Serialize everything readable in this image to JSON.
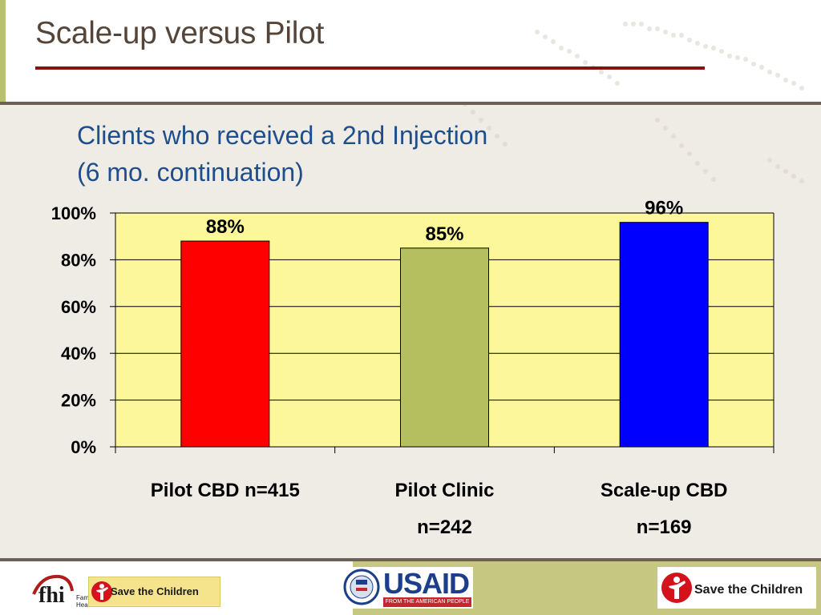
{
  "slide": {
    "title": "Scale-up versus Pilot",
    "subtitle_line1": "Clients who received a 2nd Injection",
    "subtitle_line2": "(6 mo. continuation)"
  },
  "colors": {
    "title": "#554438",
    "title_rule": "#8a1111",
    "subtitle": "#1f4e8c",
    "plot_background": "#fbf79a",
    "bar_pilot_cbd": "#ff0000",
    "bar_pilot_clinic": "#b5bf60",
    "bar_scaleup_cbd": "#0000ff"
  },
  "chart_data": {
    "type": "bar",
    "categories": [
      "Pilot CBD  n=415",
      "Pilot Clinic n=242",
      "Scale-up CBD n=169"
    ],
    "category_lines": [
      [
        "Pilot CBD  n=415"
      ],
      [
        "Pilot Clinic",
        "n=242"
      ],
      [
        "Scale-up CBD",
        "n=169"
      ]
    ],
    "values": [
      88,
      85,
      96
    ],
    "data_labels": [
      "88%",
      "85%",
      "96%"
    ],
    "bar_colors": [
      "#ff0000",
      "#b5bf60",
      "#0000ff"
    ],
    "yticks": [
      "0%",
      "20%",
      "40%",
      "60%",
      "80%",
      "100%"
    ],
    "ylim": [
      0,
      100
    ],
    "grid": true,
    "title": "",
    "xlabel": "",
    "ylabel": ""
  },
  "footer": {
    "fhi_logo": "fhi",
    "fhi_org": "Family Health International, USA",
    "stc_small": "Save the Children",
    "usaid_word": "USAID",
    "usaid_tagline": "FROM THE AMERICAN PEOPLE",
    "stc_big": "Save the Children"
  }
}
